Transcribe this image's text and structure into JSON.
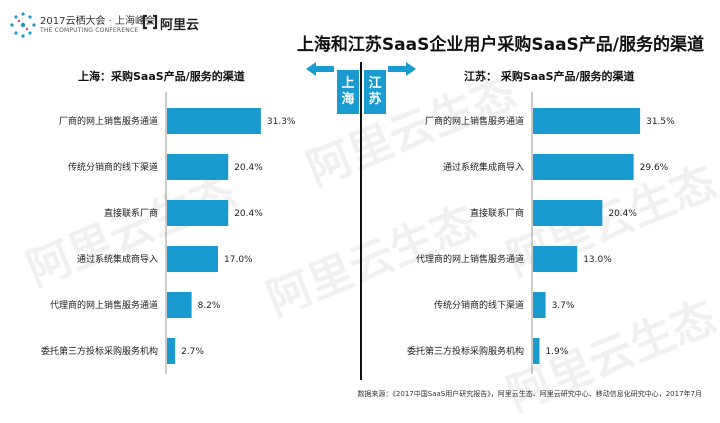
{
  "header": {
    "event_line1": "2017云栖大会 · 上海峰会",
    "event_line2": "THE COMPUTING CONFERENCE",
    "brand": "阿里云",
    "title": "上海和江苏SaaS企业用户采购SaaS产品/服务的渠道"
  },
  "tags": {
    "left": "上海",
    "right": "江苏"
  },
  "watermark_text": "阿里云生态",
  "source": "数据来源：《2017中国SaaS用户研究报告》，阿里云生态、阿里云研究中心、移动信息化研究中心，2017年7月",
  "colors": {
    "bar": "#1a9bd0",
    "axis": "#999999",
    "divider": "#111111"
  },
  "chart_data": [
    {
      "type": "bar",
      "orientation": "horizontal",
      "title": "上海：采购SaaS产品/服务的渠道",
      "categories": [
        "厂商的网上销售服务通道",
        "传统分销商的线下渠道",
        "直接联系厂商",
        "通过系统集成商导入",
        "代理商的网上销售服务通道",
        "委托第三方投标采购服务机构"
      ],
      "values": [
        31.3,
        20.4,
        20.4,
        17.0,
        8.2,
        2.7
      ],
      "value_labels": [
        "31.3%",
        "20.4%",
        "20.4%",
        "17.0%",
        "8.2%",
        "2.7%"
      ],
      "xlim": [
        0,
        35
      ]
    },
    {
      "type": "bar",
      "orientation": "horizontal",
      "title": "江苏： 采购SaaS产品/服务的渠道",
      "categories": [
        "厂商的网上销售服务通道",
        "通过系统集成商导入",
        "直接联系厂商",
        "代理商的网上销售服务通道",
        "传统分销商的线下渠道",
        "委托第三方投标采购服务机构"
      ],
      "values": [
        31.5,
        29.6,
        20.4,
        13.0,
        3.7,
        1.9
      ],
      "value_labels": [
        "31.5%",
        "29.6%",
        "20.4%",
        "13.0%",
        "3.7%",
        "1.9%"
      ],
      "xlim": [
        0,
        35
      ]
    }
  ]
}
